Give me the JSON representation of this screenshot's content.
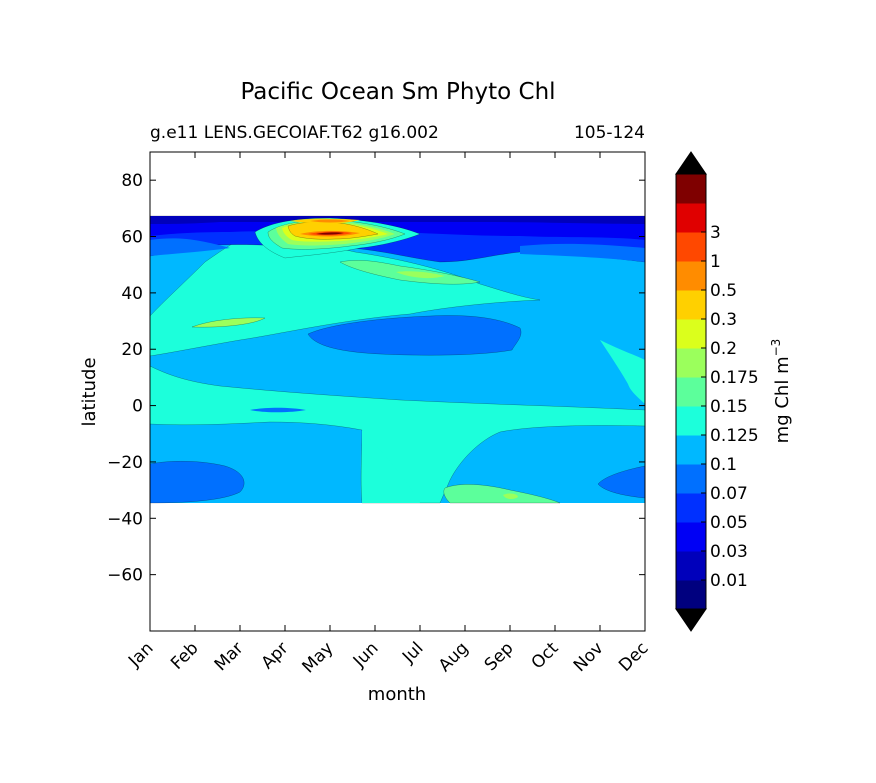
{
  "chart_data": {
    "type": "contourf",
    "title": "Pacific Ocean Sm Phyto Chl",
    "subtitle_left": "g.e11 LENS.GECOIAF.T62 g16.002",
    "subtitle_right": "105-124",
    "xlabel": "month",
    "ylabel": "latitude",
    "x_tick_labels": [
      "Jan",
      "Feb",
      "Mar",
      "Apr",
      "May",
      "Jun",
      "Jul",
      "Aug",
      "Sep",
      "Oct",
      "Nov",
      "Dec"
    ],
    "x_range": [
      1,
      12
    ],
    "y_range": [
      -80,
      90
    ],
    "y_ticks": [
      80,
      60,
      40,
      20,
      0,
      -20,
      -40,
      -60
    ],
    "y_tick_labels": [
      "80",
      "60",
      "40",
      "20",
      "0",
      "−20",
      "−40",
      "−60"
    ],
    "data_lat_range": [
      -34,
      67
    ],
    "colorbar": {
      "label": "mg Chl m",
      "label_sup": "−3",
      "levels": [
        "0.01",
        "0.03",
        "0.05",
        "0.07",
        "0.1",
        "0.125",
        "0.15",
        "0.175",
        "0.2",
        "0.3",
        "0.5",
        "1",
        "3"
      ],
      "colors": [
        "#00007f",
        "#0000bb",
        "#0000f5",
        "#0030ff",
        "#0070ff",
        "#00b8ff",
        "#1cffdb",
        "#5cff9b",
        "#9bff5c",
        "#dbff1c",
        "#ffd000",
        "#ff8c00",
        "#ff4800",
        "#e00000",
        "#7f0000"
      ],
      "extend": "both"
    },
    "regions": [
      {
        "name": "north-background",
        "level": "0.07-0.1"
      },
      {
        "name": "subpolar-bloom",
        "level": ">0.2",
        "months": [
          "Apr",
          "Jun"
        ],
        "lat": [
          57,
          66
        ]
      },
      {
        "name": "subtropical-minimum",
        "level": "0.05-0.07",
        "months": [
          "May",
          "Aug"
        ],
        "lat": [
          22,
          33
        ]
      },
      {
        "name": "equatorial-band",
        "level": "0.1-0.125",
        "lat": [
          -5,
          15
        ]
      },
      {
        "name": "south-minimum",
        "level": "0.05-0.07",
        "months": [
          "Jan",
          "Mar"
        ],
        "lat": [
          -32,
          -20
        ]
      }
    ]
  }
}
